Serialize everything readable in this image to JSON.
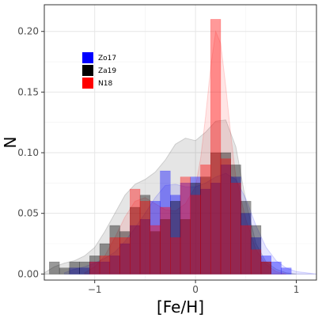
{
  "chart_data": {
    "type": "bar",
    "xlabel": "[Fe/H]",
    "ylabel": "N",
    "xlim": [
      -1.5,
      1.2
    ],
    "ylim": [
      -0.005,
      0.222
    ],
    "xticks": [
      -1,
      0,
      1
    ],
    "xtick_labels": [
      "−1",
      "0",
      "1"
    ],
    "yticks": [
      0,
      0.05,
      0.1,
      0.15,
      0.2
    ],
    "ytick_labels": [
      "0.00",
      "0.05",
      "0.10",
      "0.15",
      "0.20"
    ],
    "grid": true,
    "legend_position": "top-left",
    "bin_width": 0.1,
    "series": [
      {
        "name": "Zo17",
        "color": "#0000ff",
        "bins": [
          [
            -1.2,
            0.005
          ],
          [
            -1.1,
            0.005
          ],
          [
            -1.0,
            0.01
          ],
          [
            -0.9,
            0.01
          ],
          [
            -0.8,
            0.015
          ],
          [
            -0.7,
            0.025
          ],
          [
            -0.6,
            0.04
          ],
          [
            -0.5,
            0.045
          ],
          [
            -0.4,
            0.06
          ],
          [
            -0.3,
            0.085
          ],
          [
            -0.2,
            0.065
          ],
          [
            -0.1,
            0.075
          ],
          [
            0.0,
            0.08
          ],
          [
            0.1,
            0.07
          ],
          [
            0.2,
            0.075
          ],
          [
            0.3,
            0.09
          ],
          [
            0.4,
            0.08
          ],
          [
            0.5,
            0.05
          ],
          [
            0.6,
            0.03
          ],
          [
            0.7,
            0.015
          ],
          [
            0.8,
            0.01
          ],
          [
            0.9,
            0.005
          ]
        ]
      },
      {
        "name": "Za19",
        "color": "#000000",
        "bins": [
          [
            -1.4,
            0.01
          ],
          [
            -1.3,
            0.005
          ],
          [
            -1.2,
            0.01
          ],
          [
            -1.1,
            0.01
          ],
          [
            -1.0,
            0.015
          ],
          [
            -0.9,
            0.025
          ],
          [
            -0.8,
            0.04
          ],
          [
            -0.7,
            0.035
          ],
          [
            -0.6,
            0.055
          ],
          [
            -0.5,
            0.065
          ],
          [
            -0.4,
            0.035
          ],
          [
            -0.3,
            0.045
          ],
          [
            -0.2,
            0.06
          ],
          [
            -0.1,
            0.045
          ],
          [
            0.0,
            0.075
          ],
          [
            0.1,
            0.08
          ],
          [
            0.2,
            0.1
          ],
          [
            0.3,
            0.1
          ],
          [
            0.4,
            0.09
          ],
          [
            0.5,
            0.06
          ],
          [
            0.6,
            0.04
          ],
          [
            0.7,
            0.01
          ]
        ]
      },
      {
        "name": "N18",
        "color": "#ff0000",
        "bins": [
          [
            -1.0,
            0.01
          ],
          [
            -0.9,
            0.015
          ],
          [
            -0.8,
            0.03
          ],
          [
            -0.7,
            0.03
          ],
          [
            -0.6,
            0.07
          ],
          [
            -0.5,
            0.06
          ],
          [
            -0.4,
            0.04
          ],
          [
            -0.3,
            0.055
          ],
          [
            -0.2,
            0.03
          ],
          [
            -0.1,
            0.08
          ],
          [
            0.0,
            0.065
          ],
          [
            0.1,
            0.09
          ],
          [
            0.2,
            0.21
          ],
          [
            0.3,
            0.095
          ],
          [
            0.4,
            0.075
          ],
          [
            0.5,
            0.04
          ],
          [
            0.6,
            0.02
          ],
          [
            0.7,
            0.01
          ]
        ]
      }
    ],
    "density_curves": [
      {
        "series": "Za19",
        "color": "#000000",
        "x": [
          -1.5,
          -1.4,
          -1.3,
          -1.2,
          -1.1,
          -1.0,
          -0.9,
          -0.8,
          -0.7,
          -0.6,
          -0.5,
          -0.4,
          -0.3,
          -0.2,
          -0.1,
          0.0,
          0.1,
          0.2,
          0.3,
          0.4,
          0.5,
          0.6,
          0.7,
          0.8,
          0.9,
          1.0
        ],
        "y": [
          0.001,
          0.006,
          0.009,
          0.011,
          0.015,
          0.022,
          0.035,
          0.05,
          0.065,
          0.074,
          0.078,
          0.084,
          0.094,
          0.107,
          0.112,
          0.11,
          0.117,
          0.126,
          0.127,
          0.105,
          0.06,
          0.025,
          0.01,
          0.004,
          0.001,
          0.0
        ]
      },
      {
        "series": "Zo17",
        "color": "#0000ff",
        "x": [
          -1.3,
          -1.2,
          -1.1,
          -1.0,
          -0.9,
          -0.8,
          -0.7,
          -0.6,
          -0.5,
          -0.4,
          -0.3,
          -0.2,
          -0.1,
          0.0,
          0.1,
          0.2,
          0.3,
          0.4,
          0.5,
          0.6,
          0.7,
          0.8,
          0.9,
          1.0,
          1.1,
          1.2
        ],
        "y": [
          0.001,
          0.004,
          0.006,
          0.009,
          0.013,
          0.018,
          0.027,
          0.038,
          0.05,
          0.063,
          0.073,
          0.074,
          0.072,
          0.072,
          0.075,
          0.08,
          0.083,
          0.078,
          0.062,
          0.04,
          0.022,
          0.011,
          0.005,
          0.002,
          0.001,
          0.0
        ]
      },
      {
        "series": "N18",
        "color": "#ff0000",
        "x": [
          -1.1,
          -1.0,
          -0.9,
          -0.8,
          -0.7,
          -0.6,
          -0.5,
          -0.4,
          -0.3,
          -0.2,
          -0.1,
          0.0,
          0.05,
          0.1,
          0.15,
          0.2,
          0.25,
          0.3,
          0.35,
          0.4,
          0.5,
          0.6,
          0.7,
          0.8,
          0.9
        ],
        "y": [
          0.001,
          0.006,
          0.015,
          0.03,
          0.047,
          0.06,
          0.063,
          0.058,
          0.053,
          0.052,
          0.058,
          0.072,
          0.095,
          0.13,
          0.17,
          0.2,
          0.19,
          0.155,
          0.115,
          0.08,
          0.045,
          0.02,
          0.008,
          0.002,
          0.0
        ]
      }
    ]
  }
}
